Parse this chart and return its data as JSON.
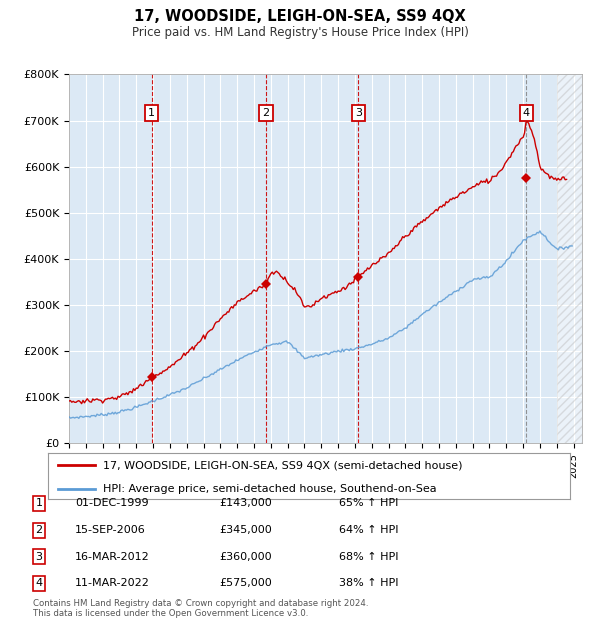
{
  "title": "17, WOODSIDE, LEIGH-ON-SEA, SS9 4QX",
  "subtitle": "Price paid vs. HM Land Registry's House Price Index (HPI)",
  "ylim": [
    0,
    800000
  ],
  "yticks": [
    0,
    100000,
    200000,
    300000,
    400000,
    500000,
    600000,
    700000,
    800000
  ],
  "ytick_labels": [
    "£0",
    "£100K",
    "£200K",
    "£300K",
    "£400K",
    "£500K",
    "£600K",
    "£700K",
    "£800K"
  ],
  "plot_bg_color": "#dce9f5",
  "grid_color": "#ffffff",
  "hpi_line_color": "#5b9bd5",
  "price_line_color": "#cc0000",
  "sale_marker_color": "#cc0000",
  "transactions": [
    {
      "label": "1",
      "date_num": 1999.92,
      "price": 143000,
      "vline_color": "#cc0000",
      "vline_style": "--"
    },
    {
      "label": "2",
      "date_num": 2006.71,
      "price": 345000,
      "vline_color": "#cc0000",
      "vline_style": "--"
    },
    {
      "label": "3",
      "date_num": 2012.21,
      "price": 360000,
      "vline_color": "#cc0000",
      "vline_style": "--"
    },
    {
      "label": "4",
      "date_num": 2022.19,
      "price": 575000,
      "vline_color": "#888888",
      "vline_style": "--"
    }
  ],
  "transaction_table": [
    {
      "num": "1",
      "date": "01-DEC-1999",
      "price": "£143,000",
      "hpi": "65% ↑ HPI"
    },
    {
      "num": "2",
      "date": "15-SEP-2006",
      "price": "£345,000",
      "hpi": "64% ↑ HPI"
    },
    {
      "num": "3",
      "date": "16-MAR-2012",
      "price": "£360,000",
      "hpi": "68% ↑ HPI"
    },
    {
      "num": "4",
      "date": "11-MAR-2022",
      "price": "£575,000",
      "hpi": "38% ↑ HPI"
    }
  ],
  "legend_line1": "17, WOODSIDE, LEIGH-ON-SEA, SS9 4QX (semi-detached house)",
  "legend_line2": "HPI: Average price, semi-detached house, Southend-on-Sea",
  "footer": "Contains HM Land Registry data © Crown copyright and database right 2024.\nThis data is licensed under the Open Government Licence v3.0.",
  "xmin": 1995.0,
  "xmax": 2025.5,
  "hatch_start": 2024.0
}
